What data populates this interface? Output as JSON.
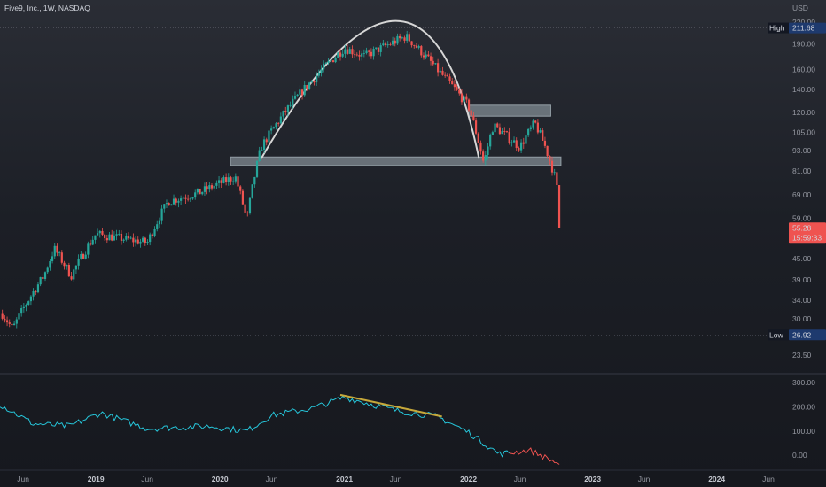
{
  "header": {
    "symbol_title": "Five9, Inc., 1W, NASDAQ",
    "currency": "USD"
  },
  "price_scale": {
    "ticks": [
      "220.00",
      "190.00",
      "160.00",
      "140.00",
      "120.00",
      "105.00",
      "93.00",
      "81.00",
      "69.00",
      "59.00",
      "45.00",
      "39.00",
      "34.00",
      "30.00",
      "23.50"
    ],
    "high_label": "High",
    "high_value": "211.68",
    "low_label": "Low",
    "low_value": "26.92",
    "last_price": "55.28",
    "countdown": "15:59:33"
  },
  "indicator_scale": {
    "ticks": [
      "300.00",
      "200.00",
      "100.00",
      "0.00"
    ]
  },
  "time_axis": {
    "labels": [
      {
        "text": "Jun",
        "bold": false
      },
      {
        "text": "2019",
        "bold": true
      },
      {
        "text": "Jun",
        "bold": false
      },
      {
        "text": "2020",
        "bold": true
      },
      {
        "text": "Jun",
        "bold": false
      },
      {
        "text": "2021",
        "bold": true
      },
      {
        "text": "Jun",
        "bold": false
      },
      {
        "text": "2022",
        "bold": true
      },
      {
        "text": "Jun",
        "bold": false
      },
      {
        "text": "2023",
        "bold": true
      },
      {
        "text": "Jun",
        "bold": false
      },
      {
        "text": "2024",
        "bold": true
      },
      {
        "text": "Jun",
        "bold": false
      }
    ]
  },
  "colors": {
    "up": "#26a69a",
    "down": "#ef5350",
    "indicator_line": "#26c6da",
    "indicator_down": "#ef5350",
    "zone": "#b0bec5",
    "arc": "#d6d6d6",
    "divergence": "#c6a83a",
    "last_price_line": "#ef5350",
    "badge_bg": "#1e3a6e"
  },
  "chart_data": {
    "type": "candlestick",
    "interval": "1W",
    "y_scale": "log",
    "ylim": [
      21,
      235
    ],
    "x_range": [
      "2018-03-25",
      "2024-07-31"
    ],
    "key_points": [
      {
        "x": "2018-04-01",
        "y": 31
      },
      {
        "x": "2018-05-01",
        "y": 28
      },
      {
        "x": "2018-08-01",
        "y": 40
      },
      {
        "x": "2018-09-01",
        "y": 48
      },
      {
        "x": "2018-10-20",
        "y": 40
      },
      {
        "x": "2019-01-01",
        "y": 53
      },
      {
        "x": "2019-06-01",
        "y": 50
      },
      {
        "x": "2019-08-01",
        "y": 66
      },
      {
        "x": "2019-11-01",
        "y": 70
      },
      {
        "x": "2020-02-15",
        "y": 78
      },
      {
        "x": "2020-03-20",
        "y": 58
      },
      {
        "x": "2020-05-01",
        "y": 95
      },
      {
        "x": "2020-10-01",
        "y": 150
      },
      {
        "x": "2021-01-01",
        "y": 185
      },
      {
        "x": "2021-03-01",
        "y": 175
      },
      {
        "x": "2021-07-01",
        "y": 200
      },
      {
        "x": "2021-10-01",
        "y": 160
      },
      {
        "x": "2022-01-01",
        "y": 125
      },
      {
        "x": "2022-02-15",
        "y": 85
      },
      {
        "x": "2022-03-15",
        "y": 110
      },
      {
        "x": "2022-06-01",
        "y": 95
      },
      {
        "x": "2022-07-15",
        "y": 112
      },
      {
        "x": "2022-08-15",
        "y": 95
      },
      {
        "x": "2022-09-15",
        "y": 76
      },
      {
        "x": "2022-10-01",
        "y": 55.28
      }
    ],
    "zones": [
      {
        "from": "2022-01-01",
        "to": "2022-08-31",
        "low": 117,
        "high": 126
      },
      {
        "from": "2020-02-01",
        "to": "2022-09-30",
        "low": 84,
        "high": 89
      }
    ],
    "arc": {
      "start": {
        "x": "2020-05-01",
        "y": 88
      },
      "peak": {
        "x": "2021-06-01",
        "y": 222
      },
      "end": {
        "x": "2022-02-01",
        "y": 88
      }
    },
    "levels": {
      "high": 211.68,
      "low": 26.92,
      "last": 55.28
    },
    "indicator": {
      "ylim": [
        -40,
        330
      ],
      "key_points": [
        {
          "x": "2018-03-25",
          "y": 210
        },
        {
          "x": "2018-07-01",
          "y": 130
        },
        {
          "x": "2018-10-15",
          "y": 120
        },
        {
          "x": "2019-01-15",
          "y": 175
        },
        {
          "x": "2019-06-01",
          "y": 110
        },
        {
          "x": "2019-12-01",
          "y": 120
        },
        {
          "x": "2020-03-20",
          "y": 100
        },
        {
          "x": "2020-06-01",
          "y": 165
        },
        {
          "x": "2020-10-01",
          "y": 195
        },
        {
          "x": "2021-01-01",
          "y": 240
        },
        {
          "x": "2021-06-01",
          "y": 185
        },
        {
          "x": "2021-10-01",
          "y": 160
        },
        {
          "x": "2022-01-01",
          "y": 95
        },
        {
          "x": "2022-04-01",
          "y": 5
        },
        {
          "x": "2022-07-01",
          "y": 20
        },
        {
          "x": "2022-10-01",
          "y": -40
        }
      ],
      "divergence_line": {
        "from": {
          "x": "2020-12-20",
          "y": 250
        },
        "to": {
          "x": "2021-10-15",
          "y": 160
        }
      }
    }
  }
}
